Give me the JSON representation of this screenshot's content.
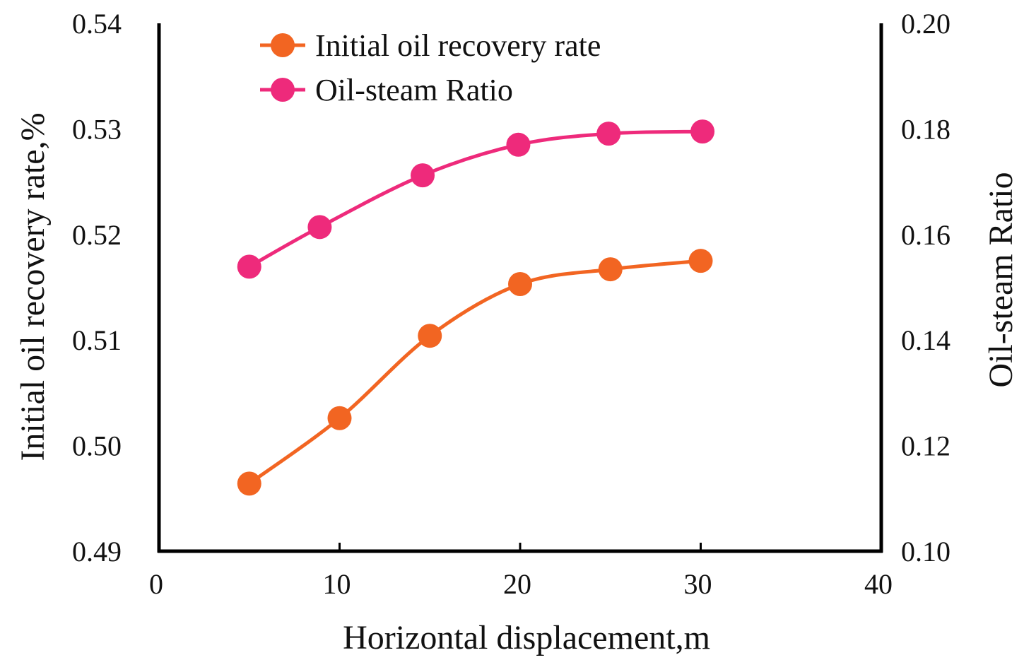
{
  "chart_data": {
    "type": "line",
    "x_axis": {
      "label": "Horizontal displacement,m",
      "range": [
        0,
        40
      ],
      "ticks": [
        "0",
        "10",
        "20",
        "30",
        "40"
      ]
    },
    "y_axis_left": {
      "label": "Initial oil recovery rate,%",
      "range": [
        0.49,
        0.54
      ],
      "ticks": [
        "0.49",
        "0.50",
        "0.51",
        "0.52",
        "0.53",
        "0.54"
      ]
    },
    "y_axis_right": {
      "label": "Oil-steam Ratio",
      "range": [
        0.1,
        0.2
      ],
      "ticks": [
        "0.10",
        "0.12",
        "0.14",
        "0.16",
        "0.18",
        "0.20"
      ]
    },
    "grid": false,
    "legend_position": "top-left",
    "series": [
      {
        "name": "Initial oil recovery rate",
        "axis": "left",
        "color": "#f26522",
        "x": [
          5,
          10,
          15,
          20,
          25,
          30
        ],
        "y": [
          0.4964,
          0.5026,
          0.5104,
          0.5153,
          0.5167,
          0.5175
        ]
      },
      {
        "name": "Oil-steam Ratio",
        "axis": "right",
        "color": "#ee2a7b",
        "x": [
          5,
          8.9,
          14.6,
          19.9,
          24.9,
          30.1
        ],
        "y": [
          0.1539,
          0.1614,
          0.1712,
          0.177,
          0.1791,
          0.1795
        ]
      }
    ]
  }
}
